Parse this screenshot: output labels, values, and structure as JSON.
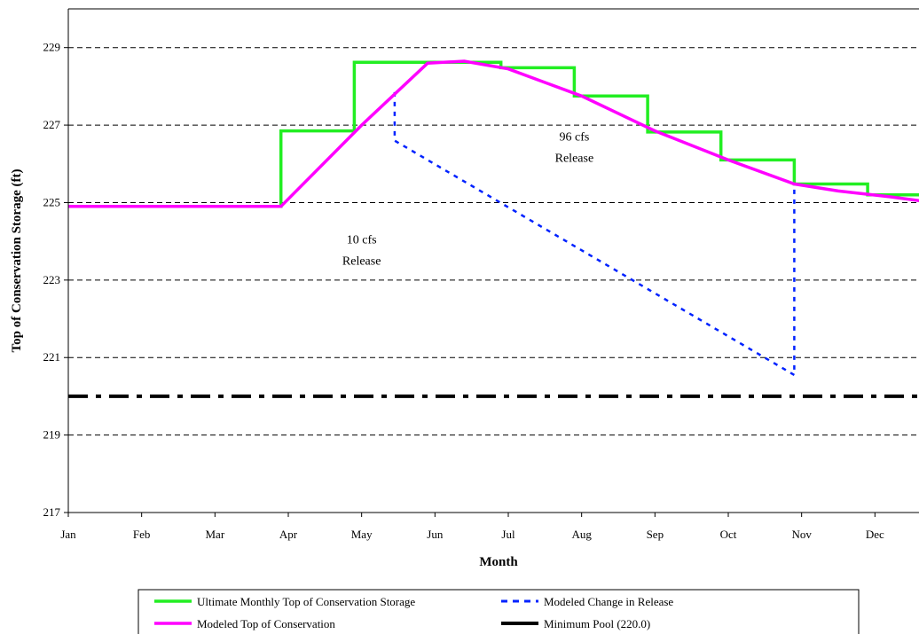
{
  "chart_data": {
    "type": "line",
    "xlabel": "Month",
    "ylabel": "Top of Conservation Storage (ft)",
    "categories": [
      "Jan",
      "Feb",
      "Mar",
      "Apr",
      "May",
      "Jun",
      "Jul",
      "Aug",
      "Sep",
      "Oct",
      "Nov",
      "Dec"
    ],
    "xlim": [
      1,
      13
    ],
    "ylim": [
      217,
      230
    ],
    "yticks": [
      217,
      219,
      221,
      223,
      225,
      227,
      229
    ],
    "grid": "horizontal dashed",
    "legend_position": "bottom",
    "series": [
      {
        "name": "Ultimate Monthly Top of Conservation Storage",
        "style": "step",
        "color": "#22ee22",
        "x": [
          1,
          3.9,
          3.9,
          4.9,
          4.9,
          6.9,
          6.9,
          7.9,
          7.9,
          8.9,
          8.9,
          9.9,
          9.9,
          10.9,
          10.9,
          11.9,
          11.9,
          13
        ],
        "y": [
          224.9,
          224.9,
          226.85,
          226.85,
          228.62,
          228.62,
          228.48,
          228.48,
          227.75,
          227.75,
          226.82,
          226.82,
          226.1,
          226.1,
          225.48,
          225.48,
          225.2,
          225.2
        ]
      },
      {
        "name": "Modeled Top of Conservation",
        "style": "line",
        "color": "#ff00ff",
        "x": [
          1,
          3.9,
          5.0,
          5.9,
          6.4,
          7.0,
          7.5,
          8.0,
          9.0,
          10.0,
          10.9,
          11.5,
          12.2,
          13.0
        ],
        "y": [
          224.9,
          224.9,
          227.0,
          228.6,
          228.65,
          228.45,
          228.1,
          227.75,
          226.85,
          226.1,
          225.48,
          225.3,
          225.15,
          224.95
        ]
      },
      {
        "name": "Modeled Change in Release",
        "style": "dashed",
        "color": "#0022ff",
        "x": [
          5.45,
          5.45,
          10.9,
          10.9
        ],
        "y": [
          227.85,
          226.6,
          220.55,
          225.48
        ]
      },
      {
        "name": "Minimum Pool (220.0)",
        "style": "dashdot",
        "color": "#000000",
        "x": [
          1,
          13
        ],
        "y": [
          220.0,
          220.0
        ]
      }
    ],
    "annotations": [
      {
        "lines": [
          "96 cfs",
          "Release"
        ],
        "x": 7.9,
        "y": 226.6
      },
      {
        "lines": [
          "10 cfs",
          "Release"
        ],
        "x": 5.0,
        "y": 223.95
      }
    ]
  }
}
